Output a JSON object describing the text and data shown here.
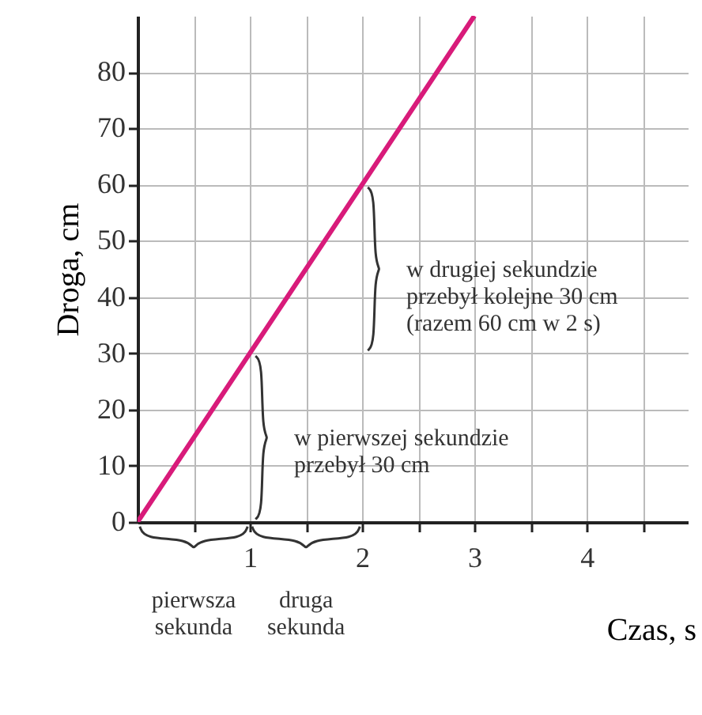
{
  "chart_data": {
    "type": "line",
    "xlabel": "Czas, s",
    "ylabel": "Droga, cm",
    "x": [
      0,
      1,
      2,
      3
    ],
    "series": [
      {
        "color": "#d81b7a",
        "values": [
          0,
          30,
          60,
          90
        ]
      }
    ],
    "xlim": [
      0,
      4.9
    ],
    "ylim": [
      0,
      90
    ],
    "xticks": [
      {
        "value": 0.5,
        "label": null
      },
      1,
      {
        "value": 1.5,
        "label": null
      },
      2,
      {
        "value": 2.5,
        "label": null
      },
      3,
      {
        "value": 3.5,
        "label": null
      },
      4,
      {
        "value": 4.5,
        "label": null
      }
    ],
    "yticks": [
      0,
      10,
      20,
      30,
      40,
      50,
      60,
      70,
      80
    ],
    "grid": true,
    "marker": "none",
    "line_style": "solid",
    "annotations": [
      "w pierwszej sekundzie\nprzebył 30 cm",
      "w drugiej sekundzie\nprzebył kolejne 30 cm\n(razem 60 cm w 2 s)",
      "pierwsza\nsekunda",
      "druga\nsekunda"
    ]
  }
}
